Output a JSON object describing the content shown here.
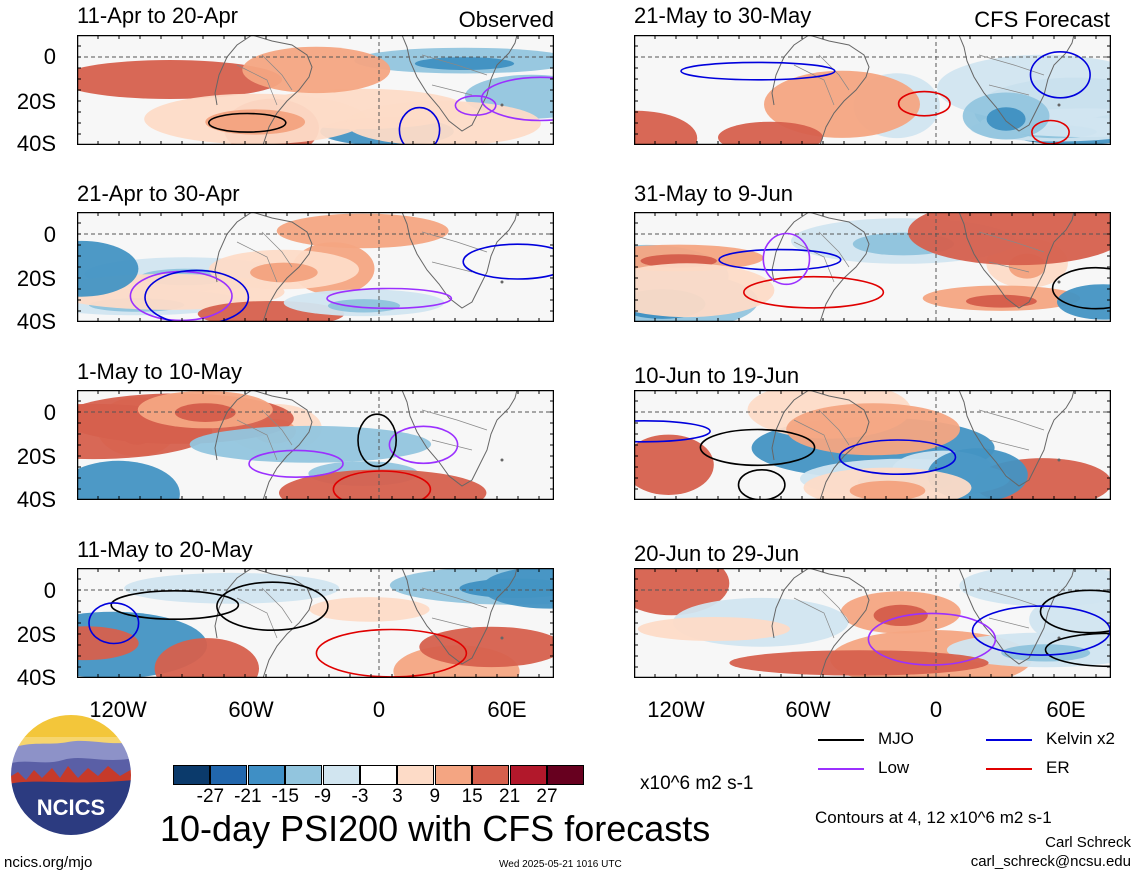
{
  "panels_left": [
    {
      "title": "11-Apr to 20-Apr",
      "label": "Observed"
    },
    {
      "title": "21-Apr to 30-Apr",
      "label": ""
    },
    {
      "title": "1-May to 10-May",
      "label": ""
    },
    {
      "title": "11-May to 20-May",
      "label": ""
    }
  ],
  "panels_right": [
    {
      "title": "21-May to 30-May",
      "label": "CFS Forecast"
    },
    {
      "title": "31-May to 9-Jun",
      "label": ""
    },
    {
      "title": "10-Jun to 19-Jun",
      "label": ""
    },
    {
      "title": "20-Jun to 29-Jun",
      "label": ""
    }
  ],
  "y_ticks": [
    "0",
    "20S",
    "40S"
  ],
  "x_ticks": [
    "120W",
    "60W",
    "0",
    "60E"
  ],
  "colorbar": {
    "colors": [
      "#0b3a6b",
      "#2166ac",
      "#3f8fc5",
      "#92c5de",
      "#d1e5f0",
      "#ffffff",
      "#fddbc7",
      "#f4a582",
      "#d6604d",
      "#b2182b",
      "#67001f"
    ],
    "labels": [
      "-27",
      "-21",
      "-15",
      "-9",
      "-3",
      "3",
      "9",
      "15",
      "21",
      "27"
    ],
    "units": "x10^6 m2 s-1"
  },
  "legend": {
    "mjo": {
      "label": "MJO",
      "color": "#000000"
    },
    "low": {
      "label": "Low",
      "color": "#9b30ff"
    },
    "kelvin": {
      "label": "Kelvin x2",
      "color": "#0000dd"
    },
    "er": {
      "label": "ER",
      "color": "#e00000"
    }
  },
  "footer": {
    "logo_text": "NCICS",
    "title": "10-day PSI200 with CFS forecasts",
    "contours": "Contours at 4, 12 x10^6 m2 s-1",
    "author": "Carl Schreck",
    "email": "carl_schreck@ncsu.edu",
    "website": "ncics.org/mjo",
    "timestamp": "Wed 2025-05-21 1016 UTC"
  }
}
